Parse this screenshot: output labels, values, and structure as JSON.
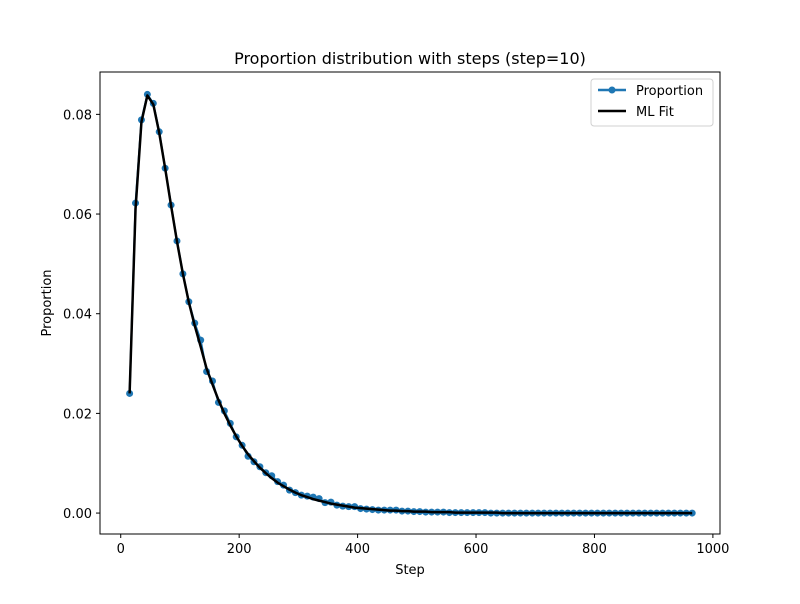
{
  "chart_data": {
    "type": "line",
    "title": "Proportion distribution with steps (step=10)",
    "xlabel": "Step",
    "ylabel": "Proportion",
    "xlim": [
      -35,
      1012
    ],
    "ylim": [
      -0.0042,
      0.0885
    ],
    "xticks": [
      0,
      200,
      400,
      600,
      800,
      1000
    ],
    "yticks": [
      0.0,
      0.02,
      0.04,
      0.06,
      0.08
    ],
    "xtick_labels": [
      "0",
      "200",
      "400",
      "600",
      "800",
      "1000"
    ],
    "ytick_labels": [
      "0.00",
      "0.02",
      "0.04",
      "0.06",
      "0.08"
    ],
    "legend_position": "upper right",
    "grid": false,
    "x": [
      15,
      25,
      35,
      45,
      55,
      65,
      75,
      85,
      95,
      105,
      115,
      125,
      135,
      145,
      155,
      165,
      175,
      185,
      195,
      205,
      215,
      225,
      235,
      245,
      255,
      265,
      275,
      285,
      295,
      305,
      315,
      325,
      335,
      345,
      355,
      365,
      375,
      385,
      395,
      405,
      415,
      425,
      435,
      445,
      455,
      465,
      475,
      485,
      495,
      505,
      515,
      525,
      535,
      545,
      555,
      565,
      575,
      585,
      595,
      605,
      615,
      625,
      635,
      645,
      655,
      665,
      675,
      685,
      695,
      705,
      715,
      725,
      735,
      745,
      755,
      765,
      775,
      785,
      795,
      805,
      815,
      825,
      835,
      845,
      855,
      865,
      875,
      885,
      895,
      905,
      915,
      925,
      935,
      945,
      955,
      965
    ],
    "series": [
      {
        "name": "Proportion",
        "color": "#1f77b4",
        "marker": "circle",
        "values": [
          0.024,
          0.0622,
          0.0789,
          0.084,
          0.0822,
          0.0765,
          0.0692,
          0.0618,
          0.0546,
          0.048,
          0.0424,
          0.0381,
          0.0347,
          0.0284,
          0.0265,
          0.0222,
          0.0205,
          0.018,
          0.0153,
          0.0136,
          0.0114,
          0.0103,
          0.0093,
          0.0081,
          0.0075,
          0.0063,
          0.0056,
          0.0046,
          0.0041,
          0.0036,
          0.0034,
          0.0032,
          0.0029,
          0.0021,
          0.0022,
          0.0016,
          0.0014,
          0.0013,
          0.0013,
          0.0009,
          0.0008,
          0.0007,
          0.0006,
          0.0006,
          0.0006,
          0.0006,
          0.0004,
          0.0004,
          0.0003,
          0.0003,
          0.0002,
          0.0002,
          0.0002,
          0.0002,
          0.0001,
          0.0001,
          0.0001,
          0.0001,
          0.0001,
          0.0001,
          0.0001,
          0.0,
          0.0,
          0.0,
          0.0,
          0.0,
          0.0,
          0.0,
          0.0,
          0.0,
          0.0,
          0.0,
          0.0,
          0.0,
          0.0,
          0.0,
          0.0,
          0.0,
          0.0,
          0.0,
          0.0,
          0.0,
          0.0,
          0.0,
          0.0,
          0.0,
          0.0,
          0.0,
          0.0,
          0.0,
          0.0,
          0.0,
          0.0,
          0.0,
          0.0,
          0.0
        ]
      },
      {
        "name": "ML Fit",
        "color": "#000000",
        "values": [
          0.024,
          0.061,
          0.0785,
          0.0838,
          0.082,
          0.0763,
          0.0692,
          0.0617,
          0.0545,
          0.048,
          0.0423,
          0.0376,
          0.0334,
          0.029,
          0.0258,
          0.0227,
          0.02,
          0.0176,
          0.0154,
          0.0135,
          0.0118,
          0.0104,
          0.0091,
          0.008,
          0.007,
          0.0061,
          0.0054,
          0.0047,
          0.0041,
          0.0036,
          0.0032,
          0.0028,
          0.0025,
          0.0022,
          0.0019,
          0.0017,
          0.0015,
          0.0013,
          0.0011,
          0.001,
          0.0009,
          0.0008,
          0.0007,
          0.0006,
          0.0005,
          0.0005,
          0.0004,
          0.0004,
          0.0003,
          0.0003,
          0.0003,
          0.0002,
          0.0002,
          0.0002,
          0.0002,
          0.0001,
          0.0001,
          0.0001,
          0.0001,
          0.0001,
          0.0001,
          0.0001,
          0.0001,
          0.0,
          0.0,
          0.0,
          0.0,
          0.0,
          0.0,
          0.0,
          0.0,
          0.0,
          0.0,
          0.0,
          0.0,
          0.0,
          0.0,
          0.0,
          0.0,
          0.0,
          0.0,
          0.0,
          0.0,
          0.0,
          0.0,
          0.0,
          0.0,
          0.0,
          0.0,
          0.0,
          0.0,
          0.0,
          0.0,
          0.0,
          0.0,
          0.0
        ]
      }
    ]
  }
}
